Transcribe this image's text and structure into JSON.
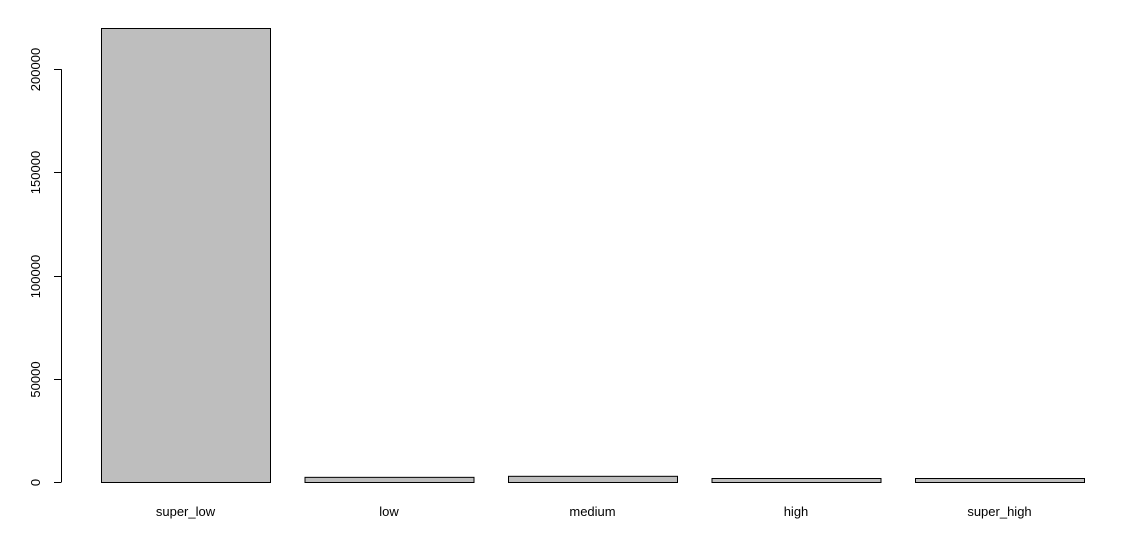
{
  "chart_data": {
    "type": "bar",
    "title": "",
    "xlabel": "",
    "ylabel": "",
    "categories": [
      "super_low",
      "low",
      "medium",
      "high",
      "super_high"
    ],
    "values": [
      220000,
      2500,
      3000,
      1000,
      1500
    ],
    "ylim": [
      0,
      220000
    ],
    "yticks": [
      0,
      50000,
      100000,
      150000,
      200000
    ],
    "ytick_labels": [
      "0",
      "50000",
      "100000",
      "150000",
      "200000"
    ],
    "grid": false,
    "bar_fill": "#bebebe",
    "bar_stroke": "#000000"
  }
}
